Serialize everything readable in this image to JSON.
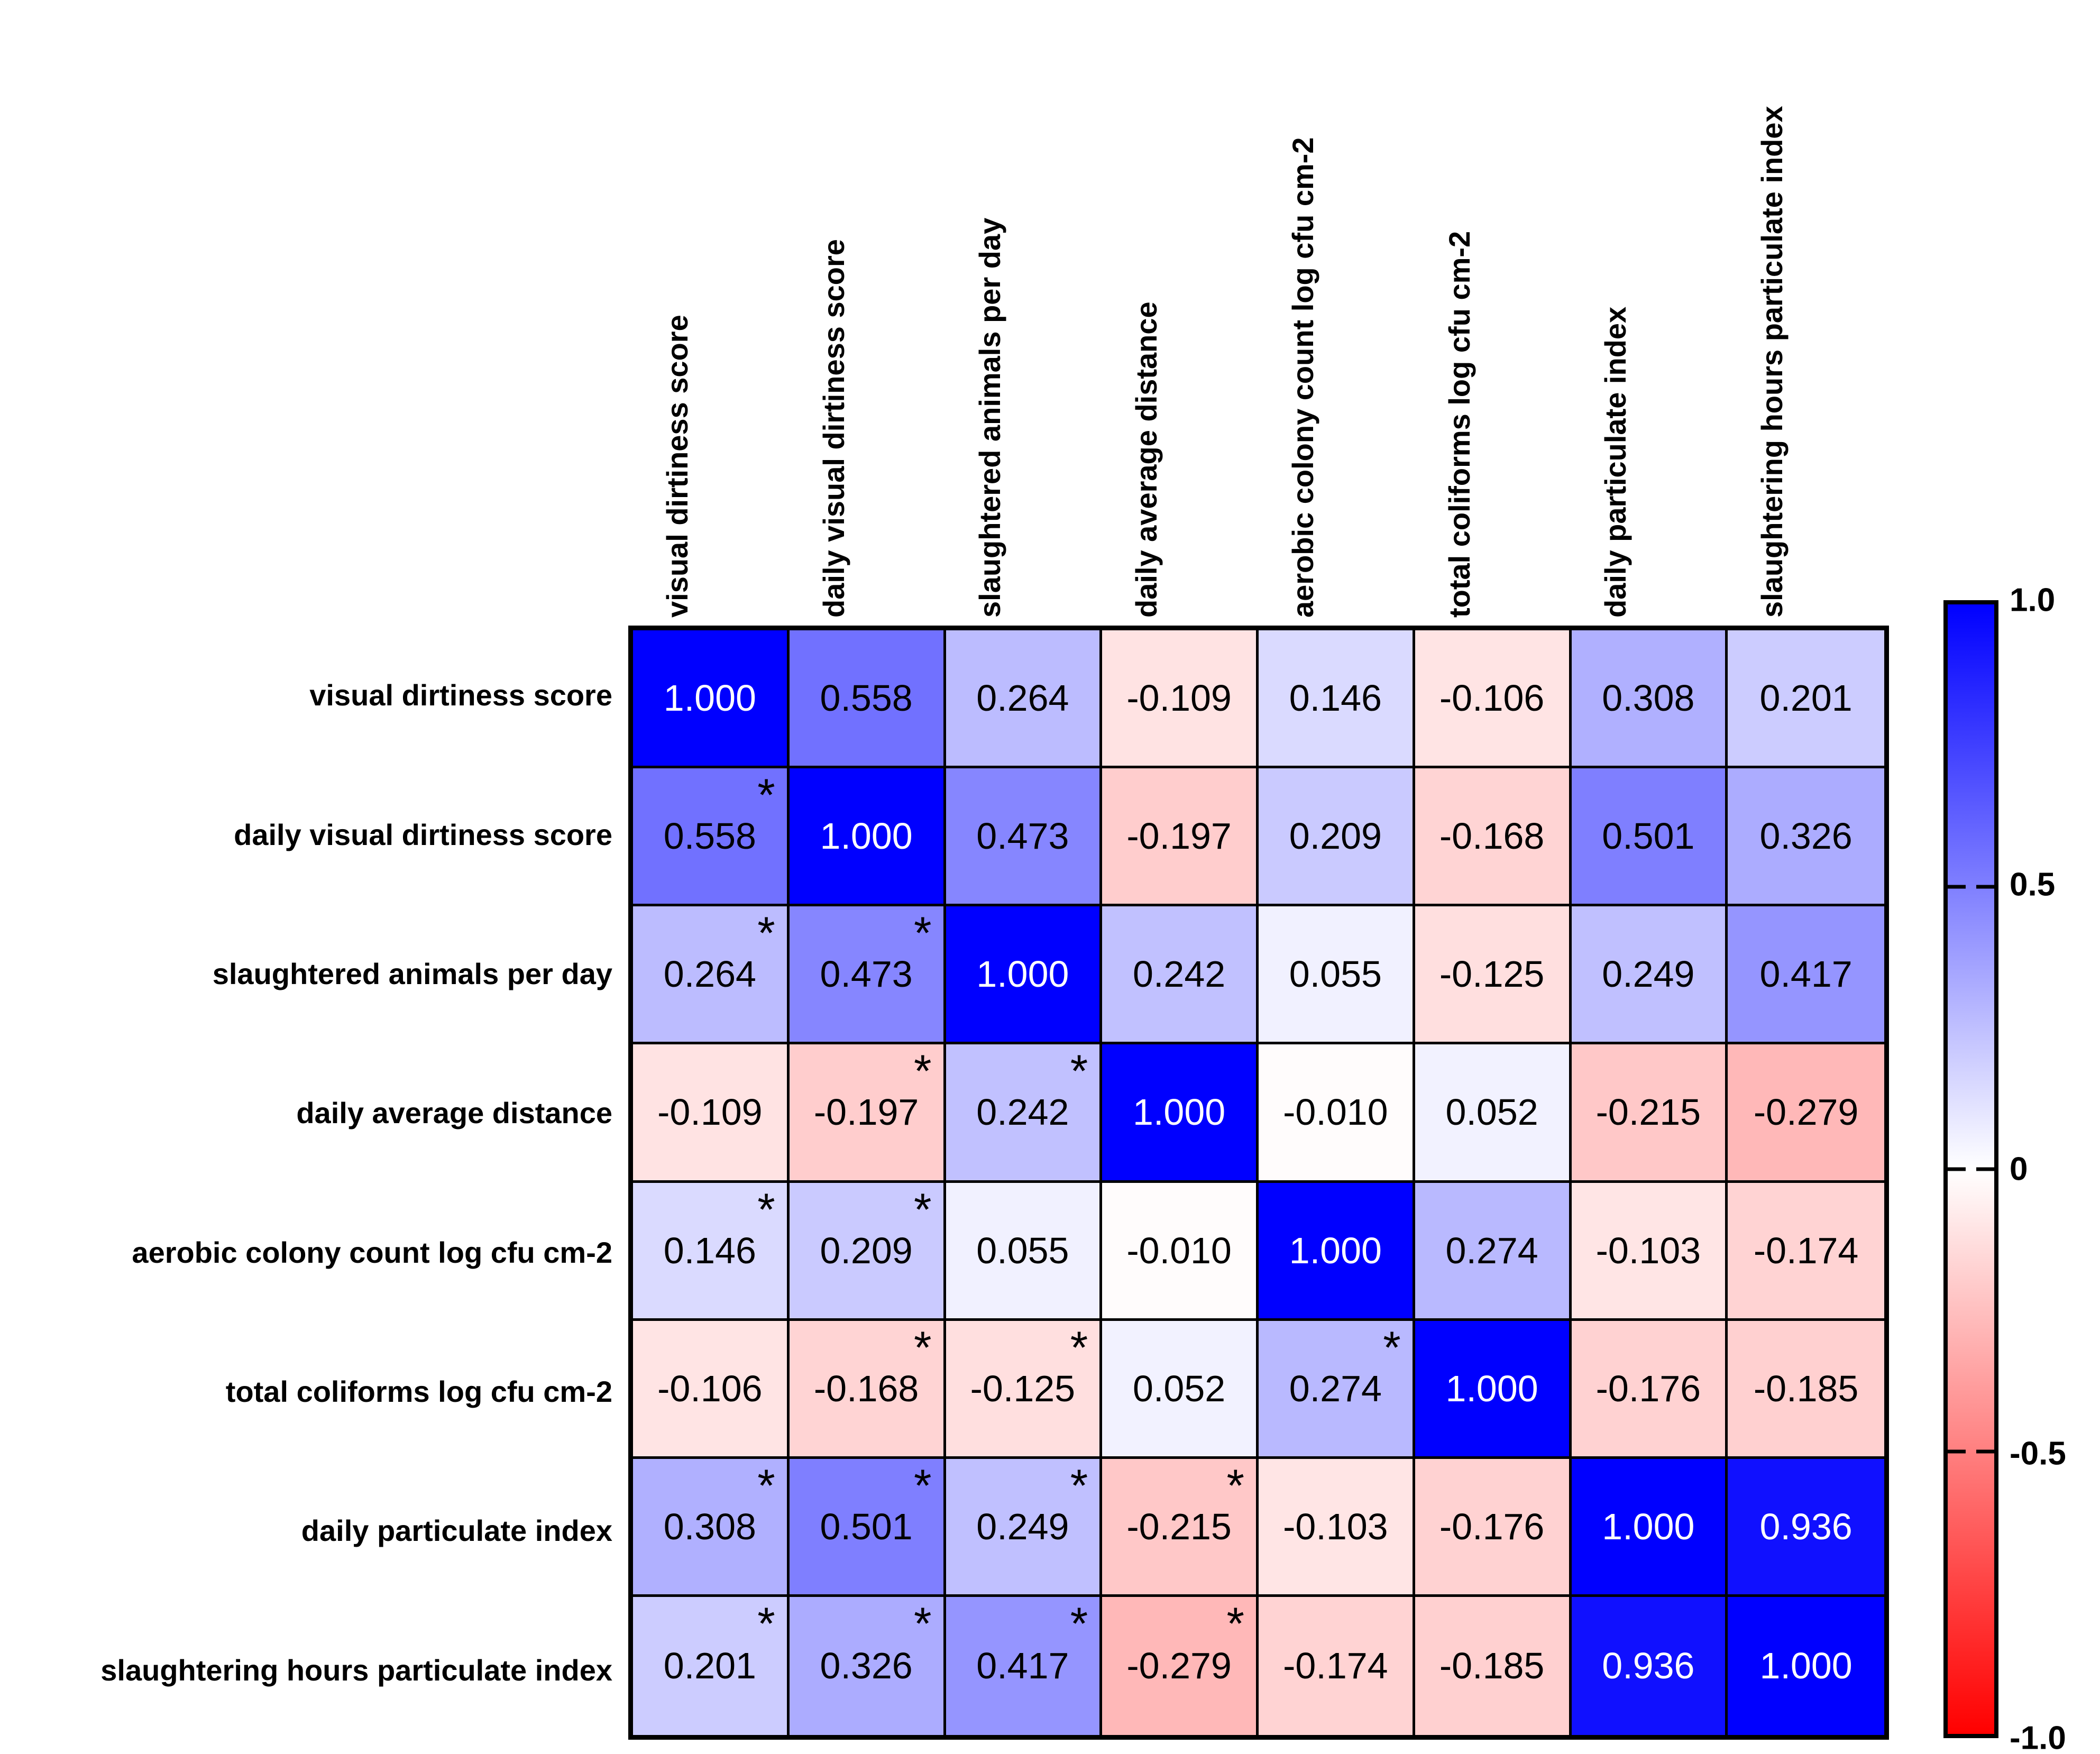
{
  "chart_data": {
    "type": "heatmap",
    "title": "",
    "variables": [
      "visual dirtiness score",
      "daily visual dirtiness score",
      "slaughtered animals per day",
      "daily average distance",
      "aerobic colony count log cfu cm-2",
      "total coliforms log cfu cm-2",
      "daily particulate index",
      "slaughtering hours particulate index"
    ],
    "matrix": [
      [
        1.0,
        0.558,
        0.264,
        -0.109,
        0.146,
        -0.106,
        0.308,
        0.201
      ],
      [
        0.558,
        1.0,
        0.473,
        -0.197,
        0.209,
        -0.168,
        0.501,
        0.326
      ],
      [
        0.264,
        0.473,
        1.0,
        0.242,
        0.055,
        -0.125,
        0.249,
        0.417
      ],
      [
        -0.109,
        -0.197,
        0.242,
        1.0,
        -0.01,
        0.052,
        -0.215,
        -0.279
      ],
      [
        0.146,
        0.209,
        0.055,
        -0.01,
        1.0,
        0.274,
        -0.103,
        -0.174
      ],
      [
        -0.106,
        -0.168,
        -0.125,
        0.052,
        0.274,
        1.0,
        -0.176,
        -0.185
      ],
      [
        0.308,
        0.501,
        0.249,
        -0.215,
        -0.103,
        -0.176,
        1.0,
        0.936
      ],
      [
        0.201,
        0.326,
        0.417,
        -0.279,
        -0.174,
        -0.185,
        0.936,
        1.0
      ]
    ],
    "significant_cells": [
      [
        1,
        0
      ],
      [
        2,
        0
      ],
      [
        2,
        1
      ],
      [
        3,
        1
      ],
      [
        3,
        2
      ],
      [
        4,
        0
      ],
      [
        4,
        1
      ],
      [
        5,
        1
      ],
      [
        5,
        2
      ],
      [
        5,
        4
      ],
      [
        6,
        0
      ],
      [
        6,
        1
      ],
      [
        6,
        2
      ],
      [
        6,
        3
      ],
      [
        7,
        0
      ],
      [
        7,
        1
      ],
      [
        7,
        2
      ],
      [
        7,
        3
      ]
    ],
    "significance_symbol": "*",
    "value_decimals": 3,
    "colorbar": {
      "tick_labels": [
        "1.0",
        "0.5",
        "0",
        "-0.5",
        "-1.0"
      ],
      "tick_values": [
        1,
        0.5,
        0,
        -0.5,
        -1
      ],
      "range": [
        -1,
        1
      ],
      "positive_color": "#0000ff",
      "zero_color": "#ffffff",
      "negative_color": "#ff0000",
      "position": "right"
    },
    "layout_hints": {
      "rows": 8,
      "cols": 8,
      "grid_lines": "black",
      "cell_text_white_threshold": 0.9
    }
  }
}
